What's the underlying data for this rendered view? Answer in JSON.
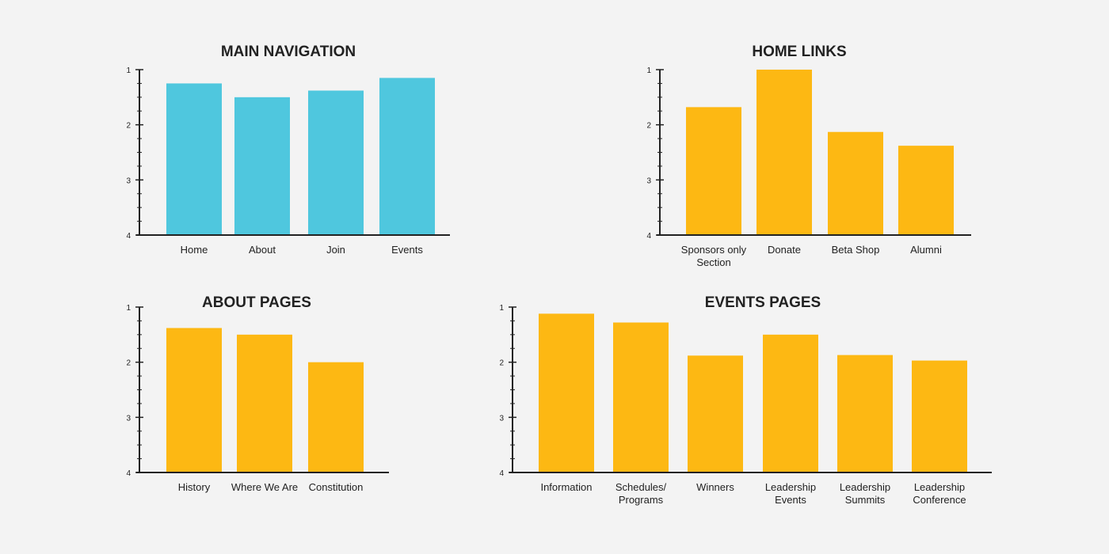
{
  "colors": {
    "background": "#f3f3f3",
    "axis": "#222222",
    "blue": "#4fc7de",
    "yellow": "#fdb813"
  },
  "chart_data": [
    {
      "type": "bar",
      "title": "MAIN NAVIGATION",
      "color": "#4fc7de",
      "categories": [
        "Home",
        "About",
        "Join",
        "Events"
      ],
      "values": [
        1.25,
        1.5,
        1.38,
        1.15
      ],
      "ylim": [
        1,
        4
      ],
      "y_ticks": [
        "1",
        "2",
        "3",
        "4"
      ],
      "y_inverted": true,
      "grid": false
    },
    {
      "type": "bar",
      "title": "HOME LINKS",
      "color": "#fdb813",
      "categories": [
        "Sponsors only\nSection",
        "Donate",
        "Beta Shop",
        "Alumni"
      ],
      "values": [
        1.68,
        1.0,
        2.13,
        2.38
      ],
      "ylim": [
        1,
        4
      ],
      "y_ticks": [
        "1",
        "2",
        "3",
        "4"
      ],
      "y_inverted": true,
      "grid": false
    },
    {
      "type": "bar",
      "title": "ABOUT PAGES",
      "color": "#fdb813",
      "categories": [
        "History",
        "Where We Are",
        "Constitution"
      ],
      "values": [
        1.38,
        1.5,
        2.0
      ],
      "ylim": [
        1,
        4
      ],
      "y_ticks": [
        "1",
        "2",
        "3",
        "4"
      ],
      "y_inverted": true,
      "grid": false
    },
    {
      "type": "bar",
      "title": "EVENTS PAGES",
      "color": "#fdb813",
      "categories": [
        "Information",
        "Schedules/\nPrograms",
        "Winners",
        "Leadership\nEvents",
        "Leadership\nSummits",
        "Leadership\nConference"
      ],
      "values": [
        1.12,
        1.28,
        1.88,
        1.5,
        1.87,
        1.97
      ],
      "ylim": [
        1,
        4
      ],
      "y_ticks": [
        "1",
        "2",
        "3",
        "4"
      ],
      "y_inverted": true,
      "grid": false
    }
  ]
}
